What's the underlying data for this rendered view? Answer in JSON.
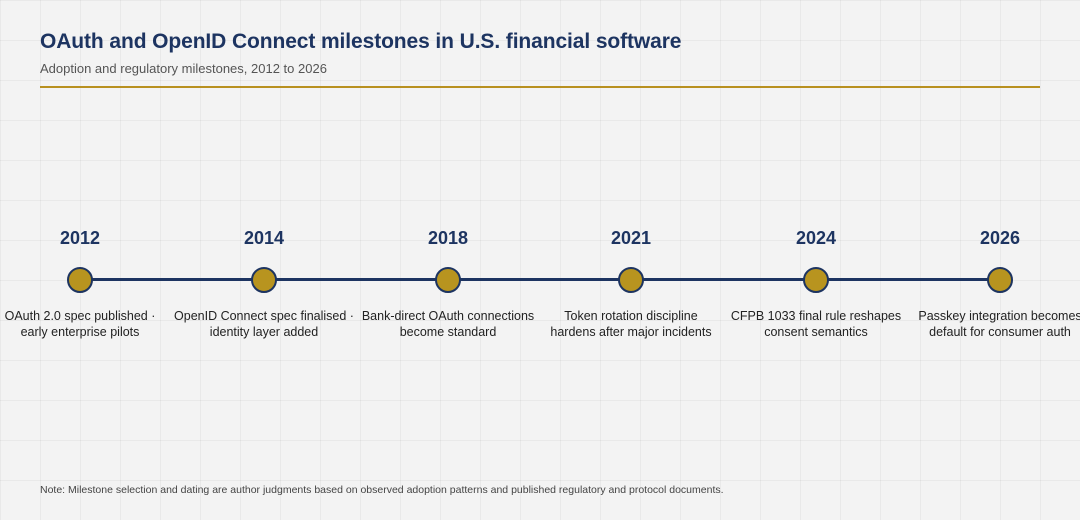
{
  "header": {
    "title": "OAuth and OpenID Connect milestones in U.S. financial software",
    "subtitle": "Adoption and regulatory milestones, 2012 to 2026"
  },
  "colors": {
    "title": "#1d3461",
    "accent_gold": "#b8941f",
    "line": "#1d3461",
    "background": "#f3f3f3"
  },
  "milestones": [
    {
      "year": "2012",
      "text": "OAuth 2.0 spec published · early enterprise pilots"
    },
    {
      "year": "2014",
      "text": "OpenID Connect spec finalised · identity layer added"
    },
    {
      "year": "2018",
      "text": "Bank-direct OAuth connections become standard"
    },
    {
      "year": "2021",
      "text": "Token rotation discipline hardens after major incidents"
    },
    {
      "year": "2024",
      "text": "CFPB 1033 final rule reshapes consent semantics"
    },
    {
      "year": "2026",
      "text": "Passkey integration becomes default for consumer auth"
    }
  ],
  "footer": {
    "note": "Note: Milestone selection and dating are author judgments based on observed adoption patterns and published regulatory and protocol documents."
  }
}
